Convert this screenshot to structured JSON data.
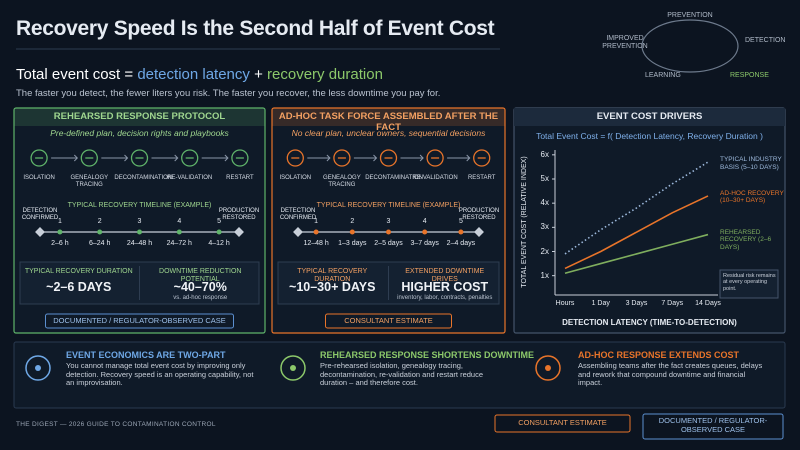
{
  "header": {
    "title": "Recovery Speed Is the Second Half of Event Cost",
    "formula": {
      "lhs": "Total event cost =",
      "term1": "detection latency",
      "plus": "+",
      "term2": "recovery duration"
    },
    "subtitle": "The faster you detect, the fewer liters you risk. The faster you recover, the less downtime you pay for."
  },
  "cycle": {
    "nodes": [
      "PREVENTION",
      "DETECTION",
      "RESPONSE",
      "LEARNING",
      "IMPROVED PREVENTION"
    ]
  },
  "panels": [
    {
      "title": "REHEARSED RESPONSE PROTOCOL",
      "subtitle": "Pre-defined plan, decision rights and playbooks",
      "steps": [
        "ISOLATION",
        "GENEALOGY TRACING",
        "DECONTAMINATION",
        "RE-VALIDATION",
        "RESTART"
      ],
      "timeline": {
        "title": "TYPICAL RECOVERY TIMELINE (EXAMPLE)",
        "start": "DETECTION CONFIRMED",
        "end": "PRODUCTION RESTORED",
        "numbers": [
          1,
          2,
          3,
          4,
          5
        ],
        "durations": [
          "2–6 h",
          "6–24 h",
          "24–48 h",
          "24–72 h",
          "4–12 h"
        ]
      },
      "stats": [
        {
          "label": "TYPICAL RECOVERY DURATION",
          "value": "~2–6 DAYS"
        },
        {
          "label": "DOWNTIME REDUCTION POTENTIAL",
          "value": "~40–70%",
          "note": "vs. ad-hoc response"
        }
      ],
      "badge": "DOCUMENTED / REGULATOR-OBSERVED CASE"
    },
    {
      "title": "AD-HOC TASK FORCE ASSEMBLED AFTER THE FACT",
      "subtitle": "No clear plan, unclear owners, sequential decisions",
      "steps": [
        "ISOLATION",
        "GENEALOGY TRACING",
        "DECONTAMINATION",
        "RE-VALIDATION",
        "RESTART"
      ],
      "timeline": {
        "title": "TYPICAL RECOVERY TIMELINE (EXAMPLE)",
        "start": "DETECTION CONFIRMED",
        "end": "PRODUCTION RESTORED",
        "numbers": [
          1,
          2,
          3,
          4,
          5
        ],
        "durations": [
          "12–48 h",
          "1–3 days",
          "2–5 days",
          "3–7 days",
          "2–4 days"
        ]
      },
      "stats": [
        {
          "label": "TYPICAL RECOVERY DURATION",
          "value": "~10–30+ DAYS"
        },
        {
          "label": "EXTENDED DOWNTIME DRIVES",
          "value": "HIGHER COST",
          "note": "inventory, labor, contracts, penalties"
        }
      ],
      "badge": "CONSULTANT ESTIMATE"
    }
  ],
  "chart_data": {
    "type": "line",
    "title": "EVENT COST DRIVERS",
    "subtitle": "Total Event Cost = f( Detection Latency, Recovery Duration )",
    "x_label": "DETECTION LATENCY (TIME-TO-DETECTION)",
    "y_label": "TOTAL EVENT COST (RELATIVE INDEX)",
    "categories": [
      "Hours",
      "1 Day",
      "3 Days",
      "7 Days",
      "14 Days"
    ],
    "ylim": [
      0.2,
      6.2
    ],
    "yticks": [
      {
        "value": 1,
        "label": "1x"
      },
      {
        "value": 2,
        "label": "2x"
      },
      {
        "value": 3,
        "label": "3x"
      },
      {
        "value": 4,
        "label": "4x"
      },
      {
        "value": 5,
        "label": "5x"
      },
      {
        "value": 6,
        "label": "6x"
      }
    ],
    "series": [
      {
        "name": "AD-HOC RECOVERY (10–30+ DAYS)",
        "color": "#e8742a",
        "values": [
          1.3,
          2.0,
          2.8,
          3.6,
          4.3
        ]
      },
      {
        "name": "TYPICAL INDUSTRY BASIS (5–10 DAYS)",
        "color": "#9db9dc",
        "dash": "dotted",
        "values": [
          1.9,
          2.9,
          3.8,
          4.8,
          5.7
        ]
      },
      {
        "name": "REHEARSED RECOVERY (2–6 DAYS)",
        "color": "#7fae5e",
        "values": [
          1.1,
          1.5,
          1.9,
          2.3,
          2.7
        ]
      }
    ],
    "annotation": "Residual risk remains at every operating point."
  },
  "takeaways": [
    {
      "title": "EVENT ECONOMICS ARE TWO-PART",
      "text": "You cannot manage total event cost by improving only detection. Recovery speed is an operating capability, not an improvisation."
    },
    {
      "title": "REHEARSED RESPONSE SHORTENS DOWNTIME",
      "text": "Pre-rehearsed isolation, genealogy tracing, decontamination, re-validation and restart reduce duration – and therefore cost."
    },
    {
      "title": "AD-HOC RESPONSE EXTENDS COST",
      "text": "Assembling teams after the fact creates queues, delays and rework that compound downtime and financial impact."
    }
  ],
  "footer": {
    "source": "THE DIGEST — 2026 GUIDE TO CONTAMINATION CONTROL",
    "badges": [
      "CONSULTANT ESTIMATE",
      "DOCUMENTED / REGULATOR-OBSERVED CASE"
    ]
  }
}
